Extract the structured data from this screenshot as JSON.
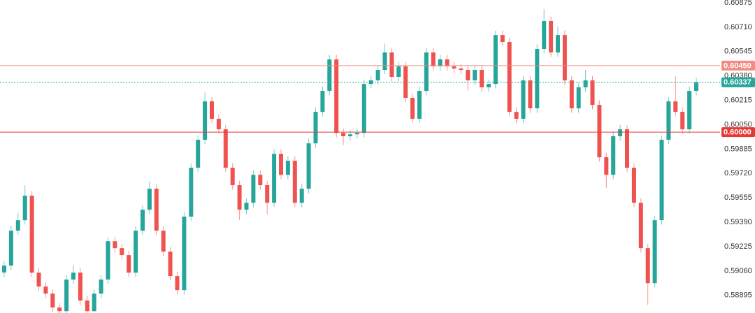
{
  "chart_data": {
    "type": "candlestick",
    "up_color": "#26a69a",
    "down_color": "#ef5350",
    "ylim": [
      0.58776,
      0.60894
    ],
    "yticks": [
      0.60875,
      {
        "value": 0.6071,
        "label": "0.60710"
      },
      0.60545,
      {
        "value": 0.6038,
        "label": "0.60380"
      },
      0.60215,
      {
        "value": 0.6005,
        "label": "0.60050"
      },
      0.59885,
      {
        "value": 0.5972,
        "label": "0.59720"
      },
      0.59555,
      {
        "value": 0.5939,
        "label": "0.59390"
      },
      0.59225,
      {
        "value": 0.5906,
        "label": "0.59060"
      },
      0.58895
    ],
    "levels": [
      {
        "value": 0.6045,
        "label": "0.60450",
        "color": "#f28b82",
        "style": "solid"
      },
      {
        "value": 0.60337,
        "label": "0.60337",
        "color": "#26a69a",
        "style": "dotted"
      },
      {
        "value": 0.6,
        "label": "0.60000",
        "color": "#e53935",
        "style": "solid"
      }
    ],
    "open": [
      0.5905,
      0.59097,
      0.59333,
      0.59404,
      0.5957,
      0.59049,
      0.58955,
      0.58907,
      0.58813,
      0.58789,
      0.59002,
      0.59049,
      0.5886,
      0.58789,
      0.58907,
      0.59002,
      0.59262,
      0.59215,
      0.59168,
      0.59049,
      0.59333,
      0.59475,
      0.59617,
      0.59333,
      0.59191,
      0.59026,
      0.58931,
      0.59428,
      0.59759,
      0.59948,
      0.60208,
      0.6009,
      0.60019,
      0.59759,
      0.59641,
      0.59475,
      0.59522,
      0.59711,
      0.59641,
      0.59522,
      0.59853,
      0.59711,
      0.59806,
      0.59522,
      0.59617,
      0.59924,
      0.60137,
      0.60279,
      0.60492,
      0.59995,
      0.59972,
      0.59985,
      0.59995,
      0.60326,
      0.6035,
      0.60421,
      0.60539,
      0.60374,
      0.60445,
      0.60232,
      0.6009,
      0.60279,
      0.60539,
      0.60445,
      0.60492,
      0.60445,
      0.6043,
      0.60421,
      0.6035,
      0.60421,
      0.60303,
      0.60326,
      0.60657,
      0.6061,
      0.60137,
      0.6009,
      0.6035,
      0.60161,
      0.60563,
      0.60752,
      0.60539,
      0.60657,
      0.6035,
      0.60161,
      0.60303,
      0.6035,
      0.60184,
      0.5983,
      0.59711,
      0.59972,
      0.60019,
      0.59759,
      0.59522,
      0.59215,
      0.58978,
      0.59404,
      0.59948,
      0.60208,
      0.60137,
      0.60019,
      0.60279
    ],
    "high": [
      0.59127,
      0.59363,
      0.59454,
      0.5964,
      0.596,
      0.59079,
      0.58985,
      0.58937,
      0.58843,
      0.59032,
      0.59099,
      0.59079,
      0.5889,
      0.58937,
      0.59032,
      0.59292,
      0.59292,
      0.59245,
      0.59198,
      0.59363,
      0.59505,
      0.59667,
      0.59647,
      0.59363,
      0.59221,
      0.59056,
      0.59458,
      0.59789,
      0.59978,
      0.60268,
      0.60238,
      0.6012,
      0.60049,
      0.59789,
      0.59671,
      0.59552,
      0.59741,
      0.59741,
      0.59671,
      0.59883,
      0.59883,
      0.59836,
      0.59836,
      0.59647,
      0.59954,
      0.60167,
      0.60309,
      0.60522,
      0.60522,
      0.60025,
      0.60015,
      0.60025,
      0.60356,
      0.6038,
      0.60451,
      0.60599,
      0.60569,
      0.60475,
      0.60475,
      0.60262,
      0.60309,
      0.60569,
      0.60569,
      0.60522,
      0.60522,
      0.60475,
      0.6046,
      0.60451,
      0.60451,
      0.60451,
      0.60356,
      0.60687,
      0.60687,
      0.6064,
      0.60167,
      0.6038,
      0.6038,
      0.60593,
      0.60832,
      0.60782,
      0.60717,
      0.60687,
      0.6038,
      0.60333,
      0.6042,
      0.6038,
      0.60214,
      0.5986,
      0.60002,
      0.60049,
      0.60049,
      0.59789,
      0.59552,
      0.59245,
      0.59434,
      0.59978,
      0.60238,
      0.6038,
      0.60167,
      0.60309,
      0.60367
    ],
    "low": [
      0.5902,
      0.59067,
      0.59303,
      0.59374,
      0.59019,
      0.58925,
      0.58877,
      0.58783,
      0.58759,
      0.58769,
      0.58972,
      0.5883,
      0.58779,
      0.58779,
      0.58877,
      0.58972,
      0.59185,
      0.59138,
      0.59019,
      0.59019,
      0.59303,
      0.59445,
      0.59303,
      0.59161,
      0.58996,
      0.58901,
      0.58901,
      0.59398,
      0.59729,
      0.59918,
      0.6006,
      0.59989,
      0.59729,
      0.59611,
      0.59405,
      0.59445,
      0.59492,
      0.59611,
      0.59442,
      0.59492,
      0.59681,
      0.59681,
      0.59492,
      0.59492,
      0.59587,
      0.59894,
      0.60107,
      0.60249,
      0.59965,
      0.59912,
      0.59942,
      0.59955,
      0.59965,
      0.60296,
      0.6032,
      0.60391,
      0.60344,
      0.60344,
      0.60202,
      0.6006,
      0.6006,
      0.60249,
      0.60415,
      0.60415,
      0.60415,
      0.604,
      0.60391,
      0.6028,
      0.6032,
      0.60273,
      0.60273,
      0.60296,
      0.6058,
      0.60107,
      0.6006,
      0.6006,
      0.60131,
      0.60131,
      0.60533,
      0.60509,
      0.60509,
      0.6032,
      0.60131,
      0.60131,
      0.60273,
      0.60154,
      0.598,
      0.59621,
      0.59681,
      0.59942,
      0.59729,
      0.59492,
      0.59185,
      0.5883,
      0.58948,
      0.59374,
      0.59918,
      0.60107,
      0.59989,
      0.59989,
      0.60249
    ],
    "close": [
      0.59097,
      0.59333,
      0.59404,
      0.5957,
      0.59049,
      0.58955,
      0.58907,
      0.58813,
      0.58789,
      0.59002,
      0.59049,
      0.5886,
      0.58789,
      0.58907,
      0.59002,
      0.59262,
      0.59215,
      0.59168,
      0.59049,
      0.59333,
      0.59475,
      0.59617,
      0.59333,
      0.59191,
      0.59026,
      0.58931,
      0.59428,
      0.59759,
      0.59948,
      0.60208,
      0.6009,
      0.60019,
      0.59759,
      0.59641,
      0.59475,
      0.59522,
      0.59711,
      0.59641,
      0.59522,
      0.59853,
      0.59711,
      0.59806,
      0.59522,
      0.59617,
      0.59924,
      0.60137,
      0.60279,
      0.60492,
      0.59995,
      0.59972,
      0.59985,
      0.59995,
      0.60326,
      0.6035,
      0.60421,
      0.60539,
      0.60374,
      0.60445,
      0.60232,
      0.6009,
      0.60279,
      0.60539,
      0.60445,
      0.60492,
      0.60445,
      0.6043,
      0.60421,
      0.6035,
      0.60421,
      0.60303,
      0.60326,
      0.60657,
      0.6061,
      0.60137,
      0.6009,
      0.6035,
      0.60161,
      0.60563,
      0.60752,
      0.60539,
      0.60657,
      0.6035,
      0.60161,
      0.60303,
      0.6035,
      0.60184,
      0.5983,
      0.59711,
      0.59972,
      0.60019,
      0.59759,
      0.59522,
      0.59215,
      0.58978,
      0.59404,
      0.59948,
      0.60208,
      0.60137,
      0.60019,
      0.60279,
      0.60337
    ]
  }
}
